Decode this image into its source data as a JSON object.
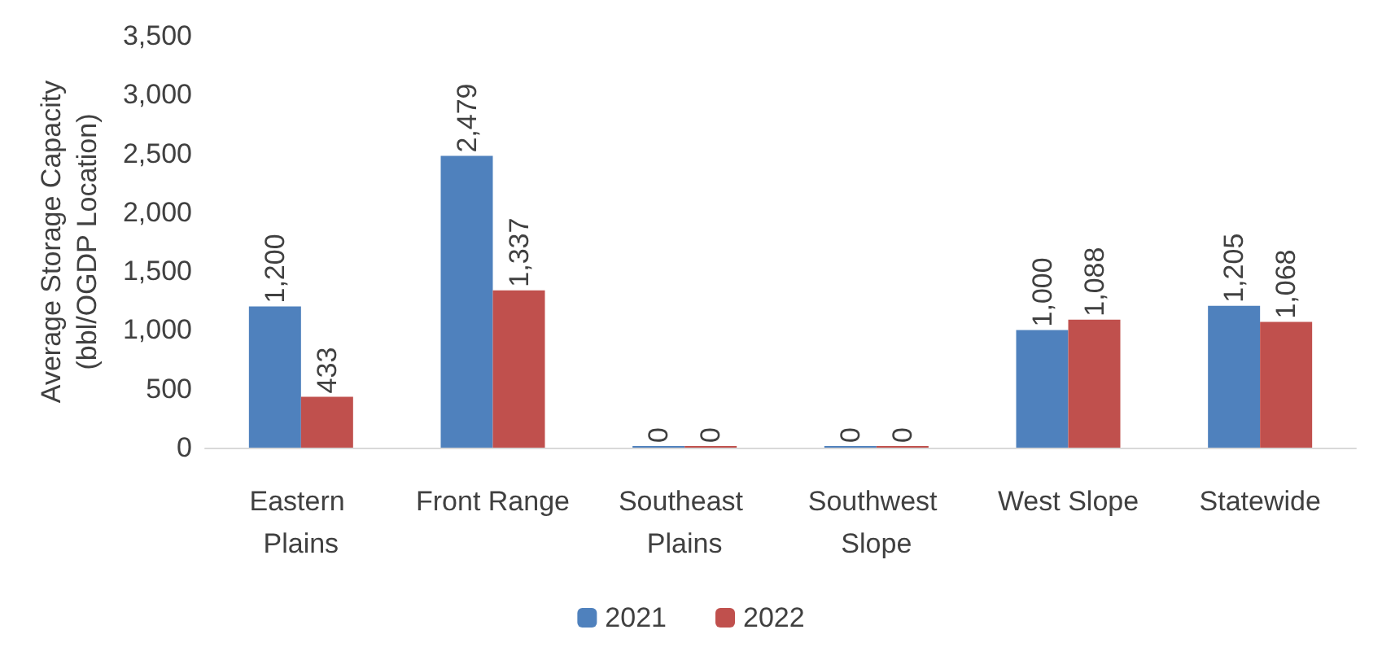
{
  "chart_data": {
    "type": "bar",
    "ylabel": "Average Storage Capacity (bbl/OGDP Location)",
    "categories": [
      "Eastern Plains",
      "Front Range",
      "Southeast Plains",
      "Southwest Slope",
      "West Slope",
      "Statewide"
    ],
    "series": [
      {
        "name": "2021",
        "color": "#4f81bd",
        "values": [
          1200,
          2479,
          0,
          0,
          1000,
          1205
        ],
        "value_labels": [
          "1,200",
          "2,479",
          "0",
          "0",
          "1,000",
          "1,205"
        ]
      },
      {
        "name": "2022",
        "color": "#c0504d",
        "values": [
          433,
          1337,
          0,
          0,
          1088,
          1068
        ],
        "value_labels": [
          "433",
          "1,337",
          "0",
          "0",
          "1,088",
          "1,068"
        ]
      }
    ],
    "ylim": [
      0,
      3500
    ],
    "yticks": [
      {
        "value": 0,
        "label": "0"
      },
      {
        "value": 500,
        "label": "500"
      },
      {
        "value": 1000,
        "label": "1,000"
      },
      {
        "value": 1500,
        "label": "1,500"
      },
      {
        "value": 2000,
        "label": "2,000"
      },
      {
        "value": 2500,
        "label": "2,500"
      },
      {
        "value": 3000,
        "label": "3,000"
      },
      {
        "value": 3500,
        "label": "3,500"
      }
    ],
    "grid": false,
    "legend": "bottom"
  }
}
